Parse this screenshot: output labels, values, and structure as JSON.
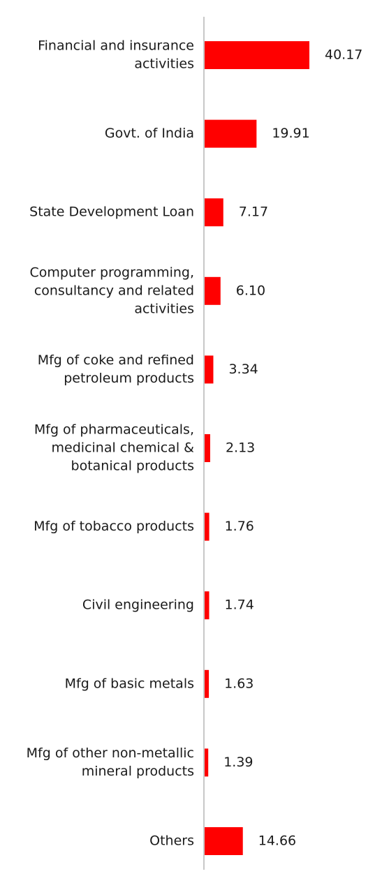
{
  "chart_data": {
    "type": "bar",
    "orientation": "horizontal",
    "categories": [
      "Financial and insurance activities",
      "Govt. of India",
      "State Development Loan",
      "Computer programming, consultancy and related activities",
      "Mfg of coke and refined petroleum products",
      "Mfg of pharmaceuticals, medicinal chemical & botanical products",
      "Mfg of tobacco products",
      "Civil engineering",
      "Mfg of basic metals",
      "Mfg of other non-metallic mineral products",
      "Others"
    ],
    "category_lines": [
      [
        "Financial and insurance",
        "activities"
      ],
      [
        "Govt. of India"
      ],
      [
        "State Development Loan"
      ],
      [
        "Computer programming,",
        "consultancy and related",
        "activities"
      ],
      [
        "Mfg of coke and refined",
        "petroleum products"
      ],
      [
        "Mfg of pharmaceuticals,",
        "medicinal chemical &",
        "botanical products"
      ],
      [
        "Mfg of tobacco products"
      ],
      [
        "Civil engineering"
      ],
      [
        "Mfg of basic metals"
      ],
      [
        "Mfg of other non-metallic",
        "mineral products"
      ],
      [
        "Others"
      ]
    ],
    "values": [
      40.17,
      19.91,
      7.17,
      6.1,
      3.34,
      2.13,
      1.76,
      1.74,
      1.63,
      1.39,
      14.66
    ],
    "value_labels": [
      "40.17",
      "19.91",
      "7.17",
      "6.10",
      "3.34",
      "2.13",
      "1.76",
      "1.74",
      "1.63",
      "1.39",
      "14.66"
    ],
    "xlim": [
      0,
      40.17
    ],
    "bar_color": "#ff0000",
    "axis_color": "#c8c8c8",
    "grid": false,
    "legend": "none",
    "title": "",
    "xlabel": "",
    "ylabel": ""
  }
}
